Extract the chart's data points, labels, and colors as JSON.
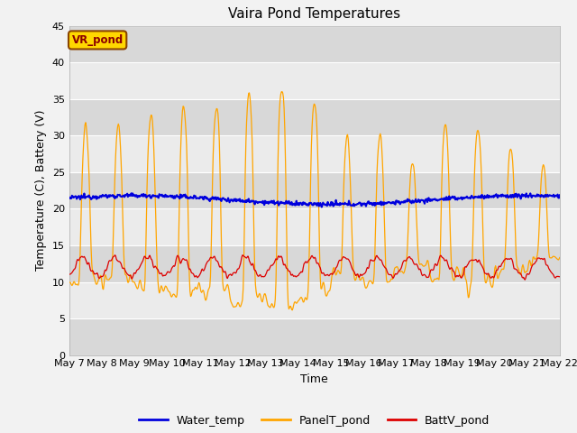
{
  "title": "Vaira Pond Temperatures",
  "xlabel": "Time",
  "ylabel": "Temperature (C), Battery (V)",
  "ylim": [
    0,
    45
  ],
  "yticks": [
    0,
    5,
    10,
    15,
    20,
    25,
    30,
    35,
    40,
    45
  ],
  "annotation": "VR_pond",
  "annotation_color": "#8B0000",
  "annotation_bg": "#FFD700",
  "annotation_border": "#8B4500",
  "water_temp_color": "#0000DD",
  "panel_temp_color": "#FFA500",
  "batt_color": "#DD0000",
  "background_color": "#F2F2F2",
  "plot_bg_light": "#EBEBEB",
  "plot_bg_dark": "#D8D8D8",
  "grid_color": "#CCCCCC",
  "num_days": 15,
  "tick_labels": [
    "May 7",
    "May 8",
    "May 9",
    "May 10",
    "May 11",
    "May 12",
    "May 13",
    "May 14",
    "May 15",
    "May 16",
    "May 17",
    "May 18",
    "May 19",
    "May 20",
    "May 21",
    "May 22"
  ]
}
